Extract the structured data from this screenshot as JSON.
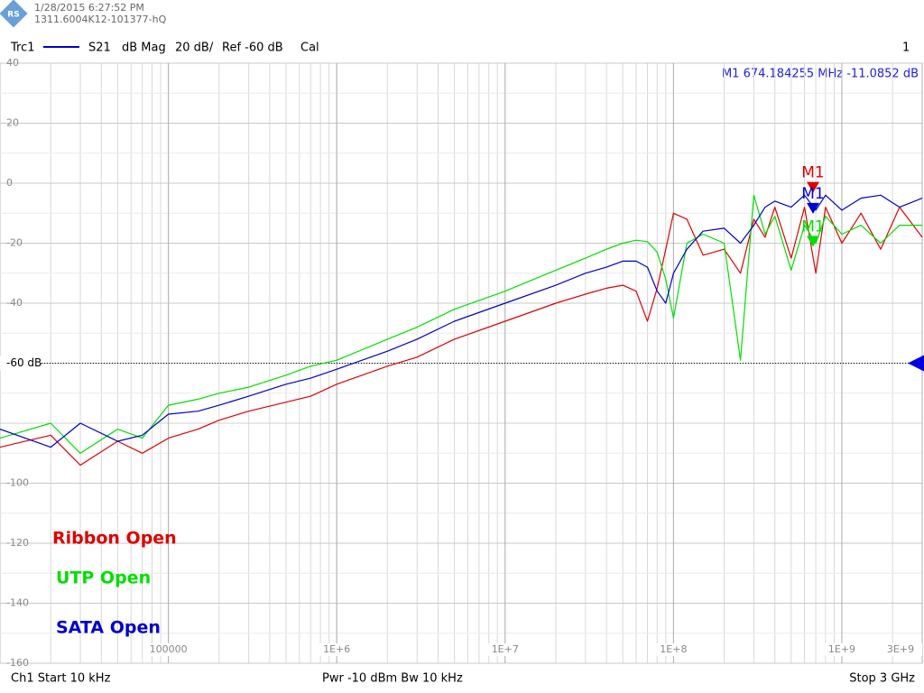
{
  "chart_data": {
    "type": "line",
    "timestamp": "1/28/2015 6:27:52 PM",
    "instrument_id": "1311.6004K12-101377-hQ",
    "trace_name": "Trc1",
    "measurement": "S21",
    "format": "dB Mag",
    "scale": "20 dB/",
    "reference": "Ref -60 dB",
    "calibration": "Cal",
    "channel_number": "1",
    "start_label": "Ch1  Start  10 kHz",
    "power_label": "Pwr  -10 dBm  Bw  10 kHz",
    "stop_label": "Stop  3 GHz",
    "marker_readout": "M1  674.184255 MHz  -11.0852  dB",
    "log_x": true,
    "grid": true,
    "xlim": [
      10000,
      3000000000
    ],
    "ylim": [
      -160,
      40
    ],
    "reference_level": -60,
    "xticks": [
      100000,
      {
        "value": 1000000,
        "label": "1E+6"
      },
      {
        "value": 10000000,
        "label": "1E+7"
      },
      {
        "value": 100000000,
        "label": "1E+8"
      },
      {
        "value": 1000000000,
        "label": "1E+9"
      },
      {
        "value": 3000000000,
        "label": "3E+9"
      }
    ],
    "yticks": [
      40,
      20,
      0,
      -20,
      -40,
      {
        "value": -60,
        "label": "-60 dB"
      },
      -100,
      -120,
      -140,
      -160
    ],
    "x": [
      10000,
      20000,
      30000,
      50000,
      70000,
      100000,
      150000,
      200000,
      300000,
      500000,
      700000,
      1000000,
      2000000,
      3000000,
      5000000,
      10000000,
      20000000,
      30000000,
      40000000,
      50000000,
      60000000,
      70000000,
      80000000,
      90000000,
      100000000,
      120000000,
      150000000,
      200000000,
      250000000,
      300000000,
      350000000,
      400000000,
      500000000,
      600000000,
      700000000,
      800000000,
      1000000000,
      1300000000,
      1700000000,
      2200000000,
      3000000000
    ],
    "series": [
      {
        "name": "Ribbon Open",
        "color": "#e00000",
        "values": [
          -88,
          -84,
          -94,
          -86,
          -90,
          -85,
          -82,
          -79,
          -76,
          -73,
          -71,
          -67,
          -61,
          -58,
          -52,
          -46,
          -40,
          -37,
          -35,
          -34,
          -36,
          -46,
          -35,
          -22,
          -10,
          -12,
          -24,
          -22,
          -30,
          -12,
          -18,
          -8,
          -25,
          -8,
          -30,
          -8,
          -20,
          -10,
          -22,
          -8,
          -18
        ],
        "marker": {
          "label": "M1",
          "x": 674184255,
          "y": -2
        }
      },
      {
        "name": "UTP Open",
        "color": "#00e000",
        "values": [
          -85,
          -80,
          -90,
          -82,
          -85,
          -74,
          -72,
          -70,
          -68,
          -64,
          -61,
          -59,
          -52,
          -48,
          -42,
          -36,
          -29,
          -25,
          -22,
          -20,
          -19,
          -19.5,
          -23,
          -32,
          -45,
          -20,
          -17,
          -20,
          -59,
          -4,
          -17,
          -11,
          -29,
          -14,
          -20,
          -11,
          -17,
          -14,
          -20,
          -14,
          -14
        ],
        "marker": {
          "label": "M1",
          "x": 674184255,
          "y": -20
        }
      },
      {
        "name": "SATA Open",
        "color": "#0000d0",
        "values": [
          -82,
          -88,
          -80,
          -86,
          -84,
          -77,
          -76,
          -74,
          -71,
          -67,
          -65,
          -62,
          -56,
          -52,
          -46,
          -40,
          -34,
          -30,
          -28,
          -26,
          -26,
          -28,
          -36,
          -40,
          -30,
          -22,
          -16,
          -15,
          -20,
          -14,
          -8,
          -6,
          -8,
          -4,
          -9,
          -4,
          -9,
          -5,
          -4,
          -8,
          -5
        ],
        "marker": {
          "label": "M1",
          "x": 674184255,
          "y": -9
        }
      }
    ]
  }
}
